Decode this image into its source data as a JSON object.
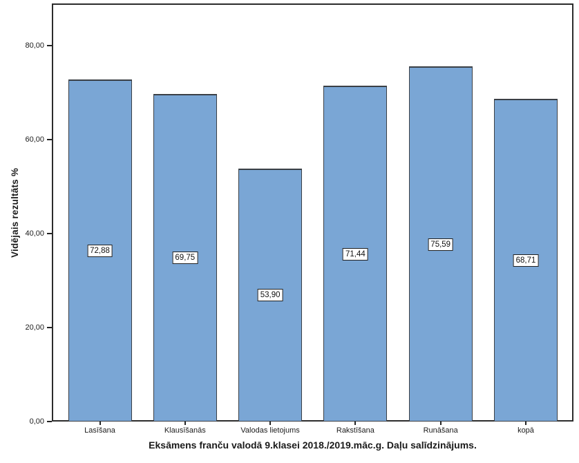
{
  "chart_data": {
    "type": "bar",
    "title": "Eksāmens franču valodā 9.klasei 2018./2019.māc.g. Daļu salīdzinājums.",
    "ylabel": "Vidējais rezultāts %",
    "xlabel": "",
    "categories": [
      "Lasīšana",
      "Klausīšanās",
      "Valodas lietojums",
      "Rakstīšana",
      "Runāšana",
      "kopā"
    ],
    "values": [
      72.88,
      69.75,
      53.9,
      71.44,
      75.59,
      68.71
    ],
    "value_labels": [
      "72,88",
      "69,75",
      "53,90",
      "71,44",
      "75,59",
      "68,71"
    ],
    "y_ticks": [
      "0,00",
      "20,00",
      "40,00",
      "60,00",
      "80,00"
    ],
    "y_tick_values": [
      0,
      20,
      40,
      60,
      80
    ],
    "ylim": [
      0,
      89
    ],
    "grid": false,
    "legend": "none",
    "bar_color": "#7AA6D5",
    "bar_border_color": "#3a3f45",
    "frame_color": "#2b2b2b"
  }
}
